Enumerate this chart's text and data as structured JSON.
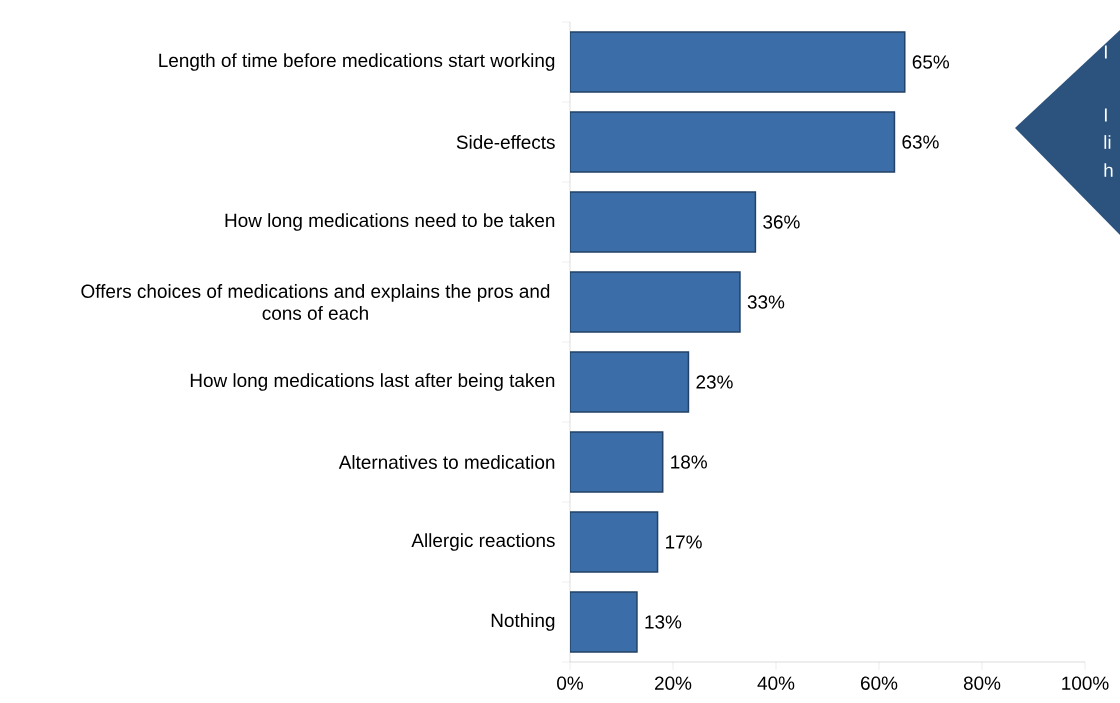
{
  "chart_data": {
    "type": "bar",
    "orientation": "horizontal",
    "categories": [
      "Length of time before medications start working",
      "Side-effects",
      "How long medications need to be taken",
      "Offers choices of medications and explains the pros and cons of each",
      "How long medications last after being taken",
      "Alternatives to medication",
      "Allergic reactions",
      "Nothing"
    ],
    "values": [
      65,
      63,
      36,
      33,
      23,
      18,
      17,
      13
    ],
    "value_labels": [
      "65%",
      "63%",
      "36%",
      "33%",
      "23%",
      "18%",
      "17%",
      "13%"
    ],
    "color": "#3b6ea8",
    "xlim": [
      0,
      100
    ],
    "xticks": [
      {
        "value": 0,
        "label": "0%"
      },
      {
        "value": 20,
        "label": "20%"
      },
      {
        "value": 40,
        "label": "40%"
      },
      {
        "value": 60,
        "label": "60%"
      },
      {
        "value": 80,
        "label": "80%"
      },
      {
        "value": 100,
        "label": "100%"
      }
    ],
    "annotations": [
      "I",
      "I",
      "li",
      "h"
    ]
  }
}
